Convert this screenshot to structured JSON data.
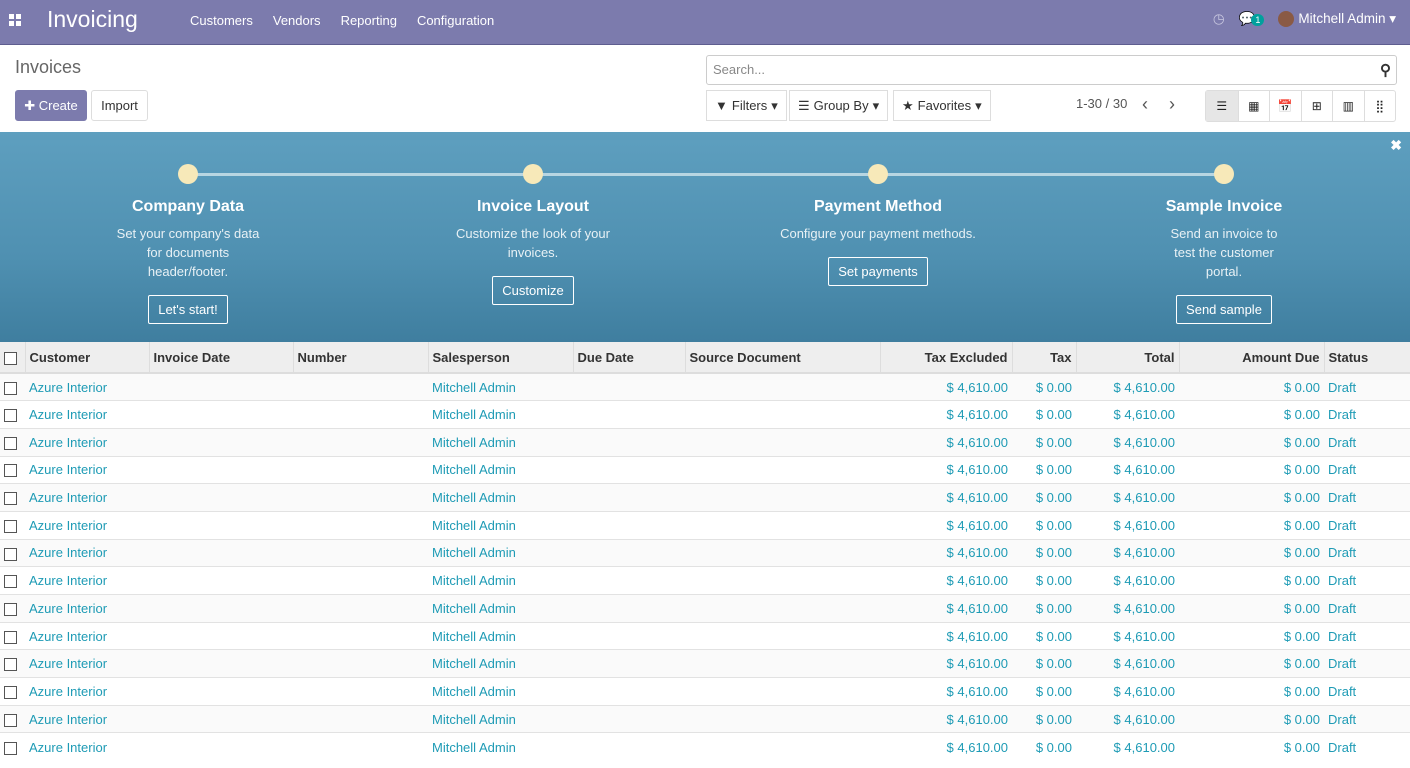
{
  "nav": {
    "brand": "Invoicing",
    "menu": [
      "Customers",
      "Vendors",
      "Reporting",
      "Configuration"
    ],
    "badge": "1",
    "user": "Mitchell Admin"
  },
  "control": {
    "title": "Invoices",
    "create": "Create",
    "import": "Import",
    "search_placeholder": "Search...",
    "filters": "Filters",
    "group_by": "Group By",
    "favorites": "Favorites",
    "pager": "1-30 / 30"
  },
  "banner": {
    "steps": [
      {
        "title": "Company Data",
        "desc": "Set your company's data for documents header/footer.",
        "button": "Let's start!"
      },
      {
        "title": "Invoice Layout",
        "desc": "Customize the look of your invoices.",
        "button": "Customize"
      },
      {
        "title": "Payment Method",
        "desc": "Configure your payment methods.",
        "button": "Set payments"
      },
      {
        "title": "Sample Invoice",
        "desc": "Send an invoice to test the customer portal.",
        "button": "Send sample"
      }
    ]
  },
  "table": {
    "columns": [
      "Customer",
      "Invoice Date",
      "Number",
      "Salesperson",
      "Due Date",
      "Source Document",
      "Tax Excluded",
      "Tax",
      "Total",
      "Amount Due",
      "Status"
    ],
    "row": {
      "customer": "Azure Interior",
      "invoice_date": "",
      "number": "",
      "salesperson": "Mitchell Admin",
      "due_date": "",
      "source": "",
      "tax_excluded": "$ 4,610.00",
      "tax": "$ 0.00",
      "total": "$ 4,610.00",
      "amount_due": "$ 0.00",
      "status": "Draft"
    },
    "visible_rows": 14
  }
}
